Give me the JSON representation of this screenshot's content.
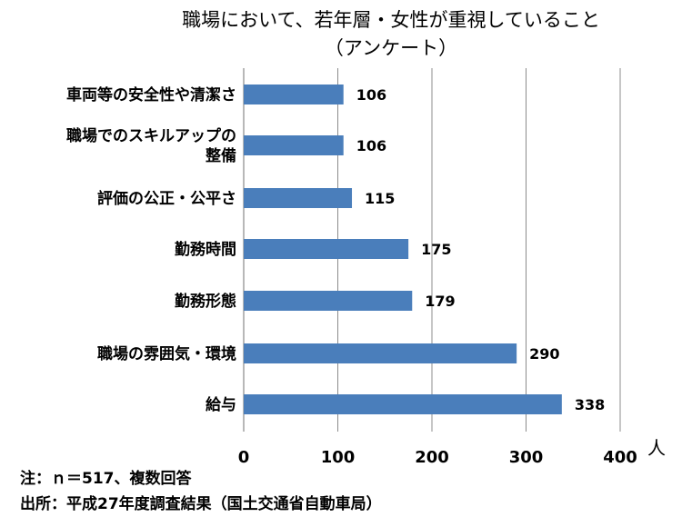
{
  "chart_data": {
    "type": "bar",
    "orientation": "horizontal",
    "title": "職場において、若年層・女性が重視していること",
    "subtitle": "（アンケート）",
    "categories": [
      [
        "車両等の安全性や清潔さ"
      ],
      [
        "職場でのスキルアップの",
        "整備"
      ],
      [
        "評価の公正・公平さ"
      ],
      [
        "勤務時間"
      ],
      [
        "勤務形態"
      ],
      [
        "職場の雰囲気・環境"
      ],
      [
        "給与"
      ]
    ],
    "values": [
      106,
      106,
      115,
      175,
      179,
      290,
      338
    ],
    "xlim": [
      0,
      400
    ],
    "xticks": [
      "0",
      "100",
      "200",
      "300",
      "400"
    ],
    "xunit": "人",
    "grid": true,
    "bar_color": "#4a7ebb",
    "notes": [
      "注：ｎ＝517、複数回答",
      "出所：平成27年度調査結果（国土交通省自動車局）"
    ]
  }
}
